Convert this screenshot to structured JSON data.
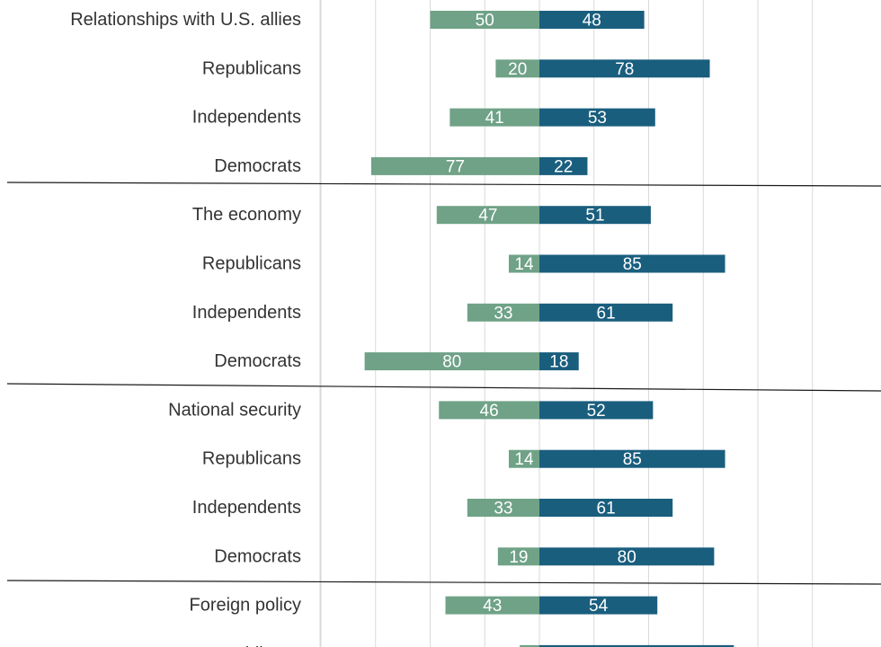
{
  "chart_data": {
    "type": "bar",
    "orientation": "horizontal-diverging",
    "grid": true,
    "legend": "none",
    "colors": {
      "negative": "#6fa287",
      "positive": "#1a5e7e"
    },
    "categories": [
      "Relationships with U.S. allies",
      "Republicans",
      "Independents",
      "Democrats",
      "The economy",
      "Republicans",
      "Independents",
      "Democrats",
      "National security",
      "Republicans",
      "Independents",
      "Democrats",
      "Foreign policy",
      "Republicans"
    ],
    "series": [
      {
        "values": [
          50,
          20,
          41,
          77,
          47,
          14,
          33,
          80,
          46,
          14,
          33,
          19,
          43,
          9
        ]
      },
      {
        "values": [
          48,
          78,
          53,
          22,
          51,
          85,
          61,
          18,
          52,
          85,
          61,
          80,
          54,
          89
        ]
      }
    ]
  }
}
